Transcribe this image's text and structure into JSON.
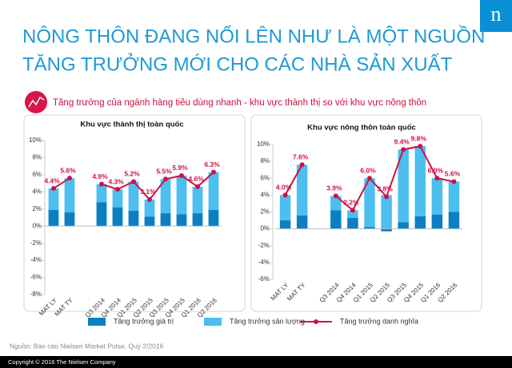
{
  "header": {
    "title_line1": "NÔNG THÔN ĐANG NỔI LÊN NHƯ LÀ MỘT NGUỒN",
    "title_line2": "TĂNG TRƯỞNG MỚI CHO CÁC NHÀ SẢN XUẤT",
    "logo": "n",
    "subtitle": "Tăng trưởng của ngành hàng tiêu dùng nhanh  - khu  vực thành thị so với khu vực nông thôn"
  },
  "chart_data": [
    {
      "type": "bar",
      "stacked": true,
      "title": "Khu vực thành thị toàn quốc",
      "categories": [
        "MAT LY",
        "MAT TY",
        null,
        "Q3 2014",
        "Q4 2014",
        "Q1 2015",
        "Q2 2015",
        "Q3 2015",
        "Q4 2015",
        "Q1 2016",
        "Q2 2016"
      ],
      "series": [
        {
          "name": "Tăng trưởng giá trị",
          "type": "bar",
          "color": "#0b7fc4",
          "values": [
            1.9,
            1.6,
            null,
            2.8,
            2.2,
            1.8,
            1.1,
            1.5,
            1.4,
            1.5,
            1.9
          ]
        },
        {
          "name": "Tăng trưởng sản lượng",
          "type": "bar",
          "color": "#4cbfee",
          "values": [
            2.5,
            4.0,
            null,
            2.1,
            2.1,
            3.4,
            2.0,
            4.0,
            4.5,
            3.1,
            4.4
          ]
        },
        {
          "name": "Tăng trưởng danh nghĩa",
          "type": "line",
          "color": "#cf1048",
          "values": [
            4.4,
            5.6,
            null,
            4.9,
            4.3,
            5.2,
            3.1,
            5.5,
            5.9,
            4.6,
            6.3
          ],
          "value_labels": [
            "4.4%",
            "5.6%",
            null,
            "4.9%",
            "4.3%",
            "5.2%",
            "3.1%",
            "5.5%",
            "5.9%",
            "4.6%",
            "6.3%"
          ]
        }
      ],
      "ylim": [
        -8,
        10
      ],
      "yticks": [
        {
          "value": 10,
          "label": "10%"
        },
        {
          "value": 8,
          "label": "8%"
        },
        {
          "value": 6,
          "label": "6%"
        },
        {
          "value": 4,
          "label": "4%"
        },
        {
          "value": 2,
          "label": "2%"
        },
        {
          "value": 0,
          "label": "0%"
        },
        {
          "value": -2,
          "label": "-2%"
        },
        {
          "value": -4,
          "label": "-4%"
        },
        {
          "value": -6,
          "label": "-6%"
        },
        {
          "value": -8,
          "label": "-8%"
        }
      ]
    },
    {
      "type": "bar",
      "stacked": true,
      "title": "Khu vực nông thôn toàn quốc",
      "categories": [
        "MAT LY",
        "MAT TY",
        null,
        "Q3 2014",
        "Q4 2014",
        "Q1 2015",
        "Q2 2015",
        "Q3 2015",
        "Q4 2015",
        "Q1 2016",
        "Q2 2016"
      ],
      "series": [
        {
          "name": "Tăng trưởng giá trị",
          "type": "bar",
          "color": "#0b7fc4",
          "values": [
            1.0,
            1.6,
            null,
            2.2,
            1.3,
            0.2,
            -0.3,
            0.8,
            1.5,
            1.7,
            2.0
          ]
        },
        {
          "name": "Tăng trưởng sản lượng",
          "type": "bar",
          "color": "#4cbfee",
          "values": [
            3.0,
            6.0,
            null,
            1.7,
            0.9,
            5.8,
            4.0,
            8.6,
            8.3,
            4.3,
            3.6
          ]
        },
        {
          "name": "Tăng trưởng danh nghĩa",
          "type": "line",
          "color": "#cf1048",
          "values": [
            4.0,
            7.6,
            null,
            3.9,
            2.2,
            6.0,
            3.8,
            9.4,
            9.8,
            6.0,
            5.6
          ],
          "value_labels": [
            "4.0%",
            "7.6%",
            null,
            "3.9%",
            "2.2%",
            "6.0%",
            "3.8%",
            "9.4%",
            "9.8%",
            "6.0%",
            "5.6%"
          ]
        }
      ],
      "ylim": [
        -6,
        10
      ],
      "yticks": [
        {
          "value": 10,
          "label": "10%"
        },
        {
          "value": 8,
          "label": "8%"
        },
        {
          "value": 6,
          "label": "6%"
        },
        {
          "value": 4,
          "label": "4%"
        },
        {
          "value": 2,
          "label": "2%"
        },
        {
          "value": 0,
          "label": "0%"
        },
        {
          "value": -2,
          "label": "-2%"
        },
        {
          "value": -4,
          "label": "-4%"
        },
        {
          "value": -6,
          "label": "-6%"
        }
      ]
    }
  ],
  "source": "Nguồn: Báo cáo Nielsen Market Pulse, Quý 2/2016",
  "footer": "Copyright © 2016 The Nielsen Company"
}
